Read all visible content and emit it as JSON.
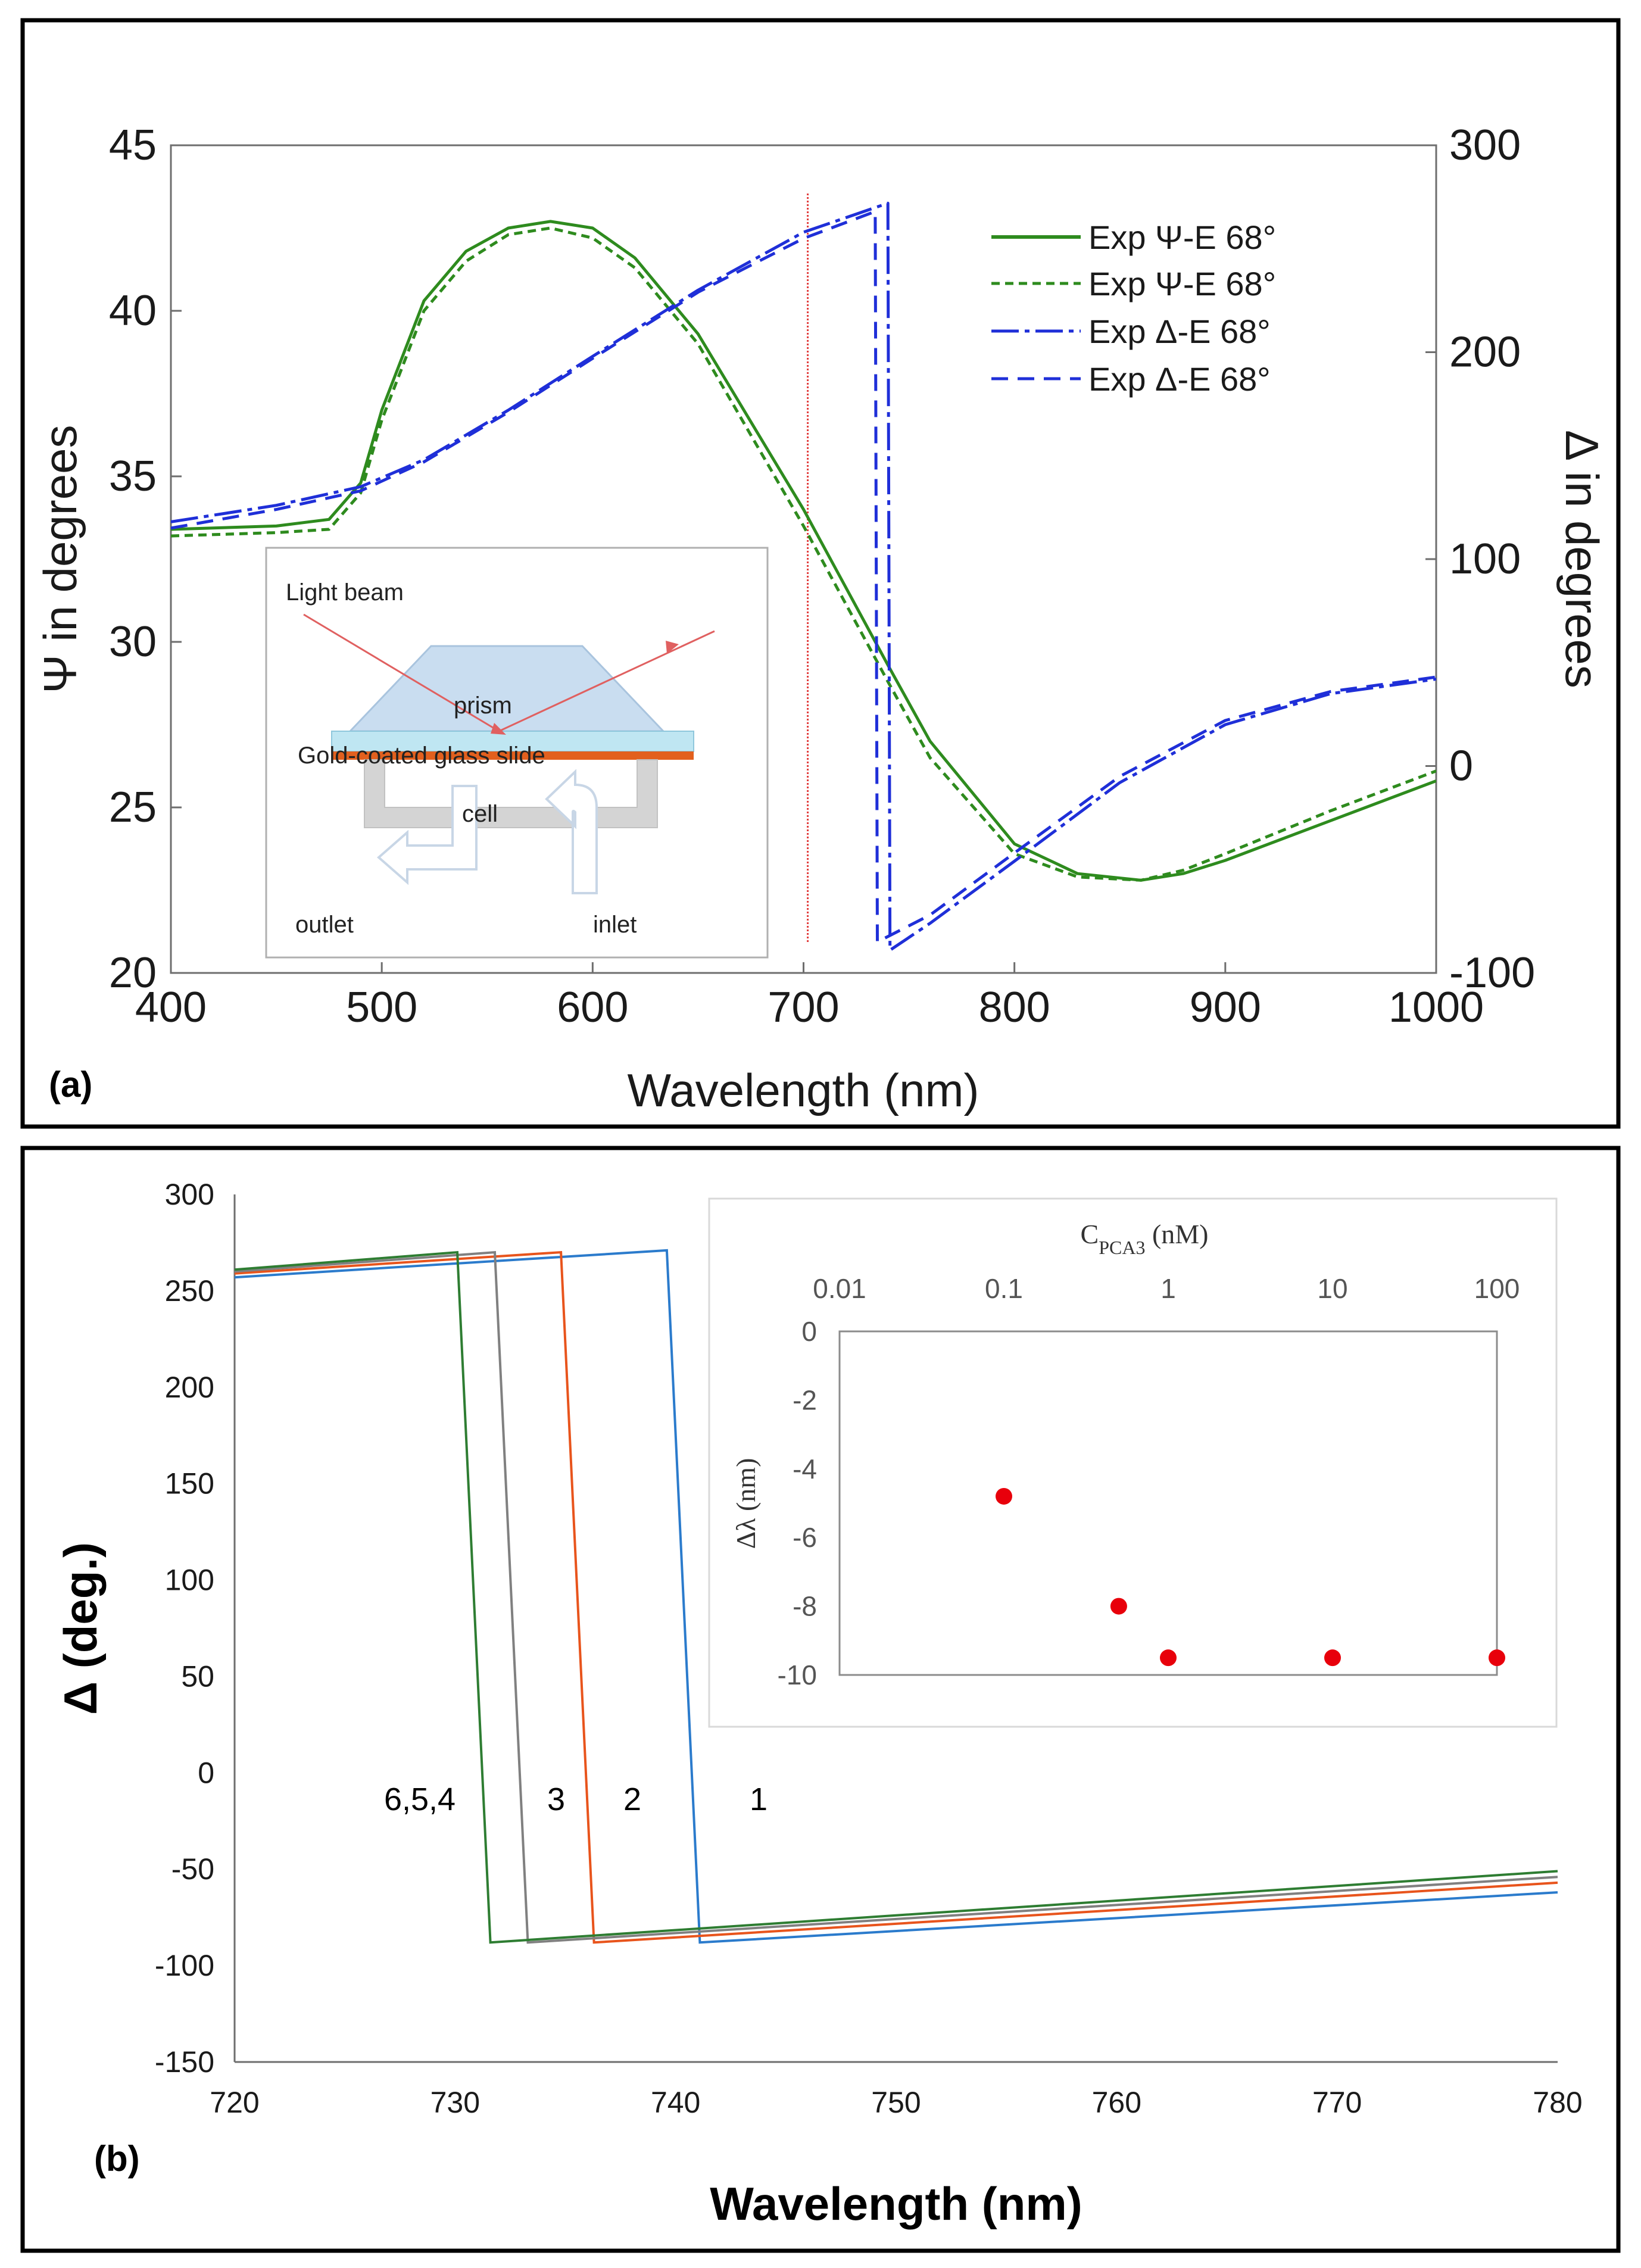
{
  "chart_data": [
    {
      "panel": "(a)",
      "type": "line",
      "xlabel": "Wavelength (nm)",
      "ylabel": "Ψ in degrees",
      "y2label": "Δ in degrees",
      "xlim": [
        400,
        1000
      ],
      "ylim": [
        20,
        45
      ],
      "y2lim": [
        -100,
        300
      ],
      "xticks": [
        "400",
        "500",
        "600",
        "700",
        "800",
        "900",
        "1000"
      ],
      "yticks": [
        "20",
        "25",
        "30",
        "35",
        "40",
        "45"
      ],
      "y2ticks": [
        "-100",
        "0",
        "100",
        "200",
        "300"
      ],
      "marker_line_x": 702,
      "series": [
        {
          "name": "Exp Ψ-E 68°",
          "axis": "left",
          "style": "solid",
          "color": "#2e8b1e",
          "x": [
            400,
            450,
            475,
            490,
            500,
            520,
            540,
            560,
            580,
            600,
            620,
            650,
            700,
            740,
            760,
            800,
            830,
            860,
            880,
            900,
            950,
            1000
          ],
          "y": [
            33.4,
            33.5,
            33.7,
            34.8,
            37.0,
            40.3,
            41.8,
            42.5,
            42.7,
            42.5,
            41.6,
            39.3,
            34.0,
            29.3,
            27.0,
            23.9,
            23.0,
            22.8,
            23.0,
            23.4,
            24.6,
            25.8
          ]
        },
        {
          "name": "Exp Ψ-E 68°",
          "axis": "left",
          "style": "short-dash",
          "color": "#2e8b1e",
          "x": [
            400,
            450,
            475,
            490,
            500,
            520,
            540,
            560,
            580,
            600,
            620,
            650,
            700,
            740,
            760,
            800,
            830,
            860,
            880,
            900,
            950,
            1000
          ],
          "y": [
            33.2,
            33.3,
            33.4,
            34.5,
            36.7,
            40.0,
            41.5,
            42.3,
            42.5,
            42.2,
            41.3,
            39.0,
            33.5,
            28.8,
            26.5,
            23.6,
            22.9,
            22.8,
            23.1,
            23.6,
            24.9,
            26.1
          ]
        },
        {
          "name": "Exp Δ-E 68°",
          "axis": "right",
          "style": "long-dash",
          "color": "#1f2fd8",
          "x": [
            400,
            450,
            490,
            520,
            560,
            600,
            650,
            700,
            740,
            741,
            760,
            800,
            850,
            900,
            950,
            1000
          ],
          "y": [
            118,
            126,
            135,
            148,
            172,
            198,
            230,
            258,
            272,
            -89,
            -76,
            -46,
            -8,
            20,
            35,
            42
          ]
        },
        {
          "name": "Exp Δ-E 68°",
          "axis": "right",
          "style": "dash",
          "color": "#1f2fd8",
          "x": [
            400,
            450,
            490,
            520,
            560,
            600,
            650,
            700,
            734,
            735,
            760,
            800,
            850,
            900,
            950,
            1000
          ],
          "y": [
            115,
            124,
            133,
            147,
            171,
            197,
            229,
            255,
            268,
            -85,
            -72,
            -42,
            -5,
            22,
            36,
            43
          ]
        }
      ],
      "inset_diagram": {
        "labels": [
          "Light beam",
          "prism",
          "Gold-coated glass slide",
          "cell",
          "outlet",
          "inlet"
        ]
      }
    },
    {
      "panel": "(b)",
      "type": "line",
      "xlabel": "Wavelength (nm)",
      "ylabel": "Δ (deg.)",
      "xlim": [
        720,
        780
      ],
      "ylim": [
        -150,
        300
      ],
      "xticks": [
        "720",
        "730",
        "740",
        "750",
        "760",
        "770",
        "780"
      ],
      "yticks": [
        "300",
        "250",
        "200",
        "150",
        "100",
        "50",
        "0",
        "-50",
        "-100",
        "-150"
      ],
      "series": [
        {
          "name": "6,5,4",
          "color": "#2e7d32",
          "x": [
            720,
            730.1,
            731.6,
            780
          ],
          "y": [
            261,
            270,
            -88,
            -51
          ]
        },
        {
          "name": "3",
          "color": "#808080",
          "x": [
            720,
            731.8,
            733.3,
            780
          ],
          "y": [
            260,
            270,
            -88,
            -54
          ]
        },
        {
          "name": "2",
          "color": "#e8541c",
          "x": [
            720,
            734.8,
            736.3,
            780
          ],
          "y": [
            259,
            270,
            -88,
            -57
          ]
        },
        {
          "name": "1",
          "color": "#2b7bcc",
          "x": [
            720,
            739.6,
            741.1,
            780
          ],
          "y": [
            257,
            271,
            -88,
            -62
          ]
        }
      ],
      "curve_labels": [
        "6,5,4",
        "3",
        "2",
        "1"
      ],
      "inset": {
        "type": "scatter",
        "xlabel_main": "C",
        "xlabel_sub": "PCA3",
        "xlabel_unit": " (nM)",
        "ylabel": "Δλ (nm)",
        "xscale": "log",
        "xlim": [
          0.01,
          100
        ],
        "ylim": [
          -10,
          0
        ],
        "xticks": [
          "0.01",
          "0.1",
          "1",
          "10",
          "100"
        ],
        "yticks": [
          "0",
          "-2",
          "-4",
          "-6",
          "-8",
          "-10"
        ],
        "points": {
          "x": [
            0.1,
            0.5,
            1,
            10,
            100
          ],
          "y": [
            -4.8,
            -8.0,
            -9.5,
            -9.5,
            -9.5
          ]
        },
        "marker_color": "#e8000b"
      }
    }
  ],
  "labels": {
    "panel_a": "(a)",
    "panel_b": "(b)"
  }
}
